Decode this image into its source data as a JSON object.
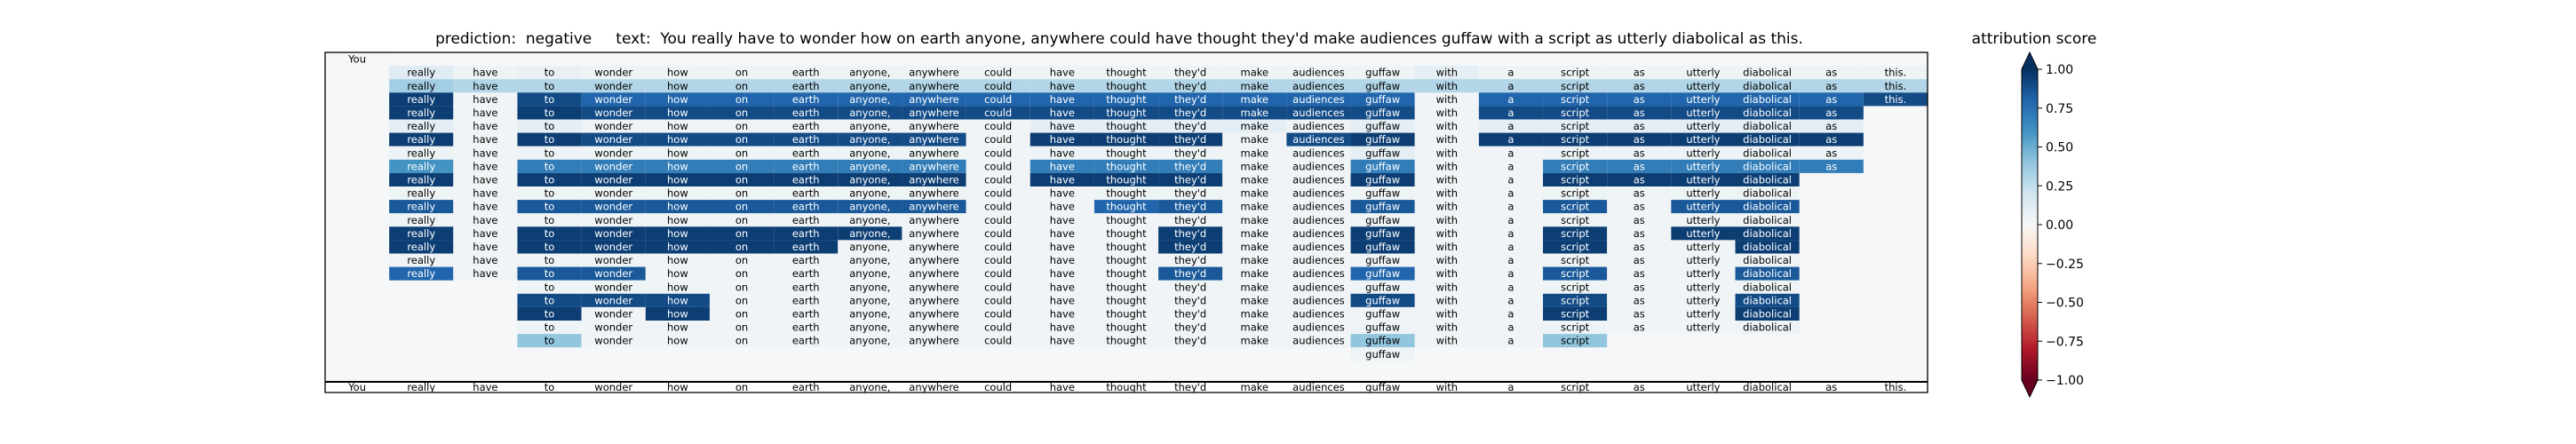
{
  "chart_data": {
    "type": "heatmap",
    "title": {
      "prediction_label": "prediction:",
      "prediction_value": "negative",
      "text_label": "text:",
      "text_value": "You really have to wonder how on earth anyone, anywhere could have thought they'd make audiences guffaw with a script as utterly diabolical as this."
    },
    "tokens": [
      "You",
      "really",
      "have",
      "to",
      "wonder",
      "how",
      "on",
      "earth",
      "anyone,",
      "anywhere",
      "could",
      "have",
      "thought",
      "they'd",
      "make",
      "audiences",
      "guffaw",
      "with",
      "a",
      "script",
      "as",
      "utterly",
      "diabolical",
      "as",
      "this."
    ],
    "rows": [
      {
        "start": 0,
        "values": [
          0.01
        ]
      },
      {
        "start": 1,
        "values": [
          0.12,
          0.05,
          0.08,
          0.05,
          0.05,
          0.05,
          0.05,
          0.05,
          0.05,
          0.05,
          0.05,
          0.05,
          0.05,
          0.05,
          0.05,
          0.05,
          0.1,
          0.05,
          0.05,
          0.05,
          0.05,
          0.05,
          0.05,
          0.05
        ]
      },
      {
        "start": 1,
        "values": [
          0.35,
          0.3,
          0.3,
          0.3,
          0.3,
          0.3,
          0.3,
          0.3,
          0.3,
          0.3,
          0.3,
          0.3,
          0.3,
          0.3,
          0.3,
          0.3,
          0.3,
          0.3,
          0.3,
          0.3,
          0.3,
          0.3,
          0.3,
          0.3
        ]
      },
      {
        "start": 1,
        "values": [
          0.95,
          0.03,
          0.9,
          0.8,
          0.8,
          0.8,
          0.8,
          0.8,
          0.8,
          0.8,
          0.8,
          0.8,
          0.8,
          0.8,
          0.8,
          0.8,
          0.03,
          0.8,
          0.8,
          0.8,
          0.8,
          0.8,
          0.8,
          0.9
        ]
      },
      {
        "start": 1,
        "values": [
          0.95,
          0.03,
          0.95,
          0.9,
          0.9,
          0.9,
          0.9,
          0.9,
          0.9,
          0.9,
          0.9,
          0.9,
          0.9,
          0.9,
          0.9,
          0.9,
          0.03,
          0.9,
          0.9,
          0.9,
          0.9,
          0.9,
          0.9
        ]
      },
      {
        "start": 1,
        "values": [
          0.1,
          0.03,
          0.1,
          0.05,
          0.05,
          0.05,
          0.05,
          0.05,
          0.05,
          0.03,
          0.1,
          0.1,
          0.1,
          0.1,
          0.05,
          0.1,
          0.03,
          0.1,
          0.1,
          0.1,
          0.1,
          0.1,
          0.1
        ]
      },
      {
        "start": 1,
        "values": [
          0.95,
          0.03,
          0.95,
          0.9,
          0.9,
          0.9,
          0.9,
          0.9,
          0.9,
          0.03,
          0.95,
          0.95,
          0.95,
          0.03,
          0.9,
          0.95,
          0.03,
          0.95,
          0.95,
          0.95,
          0.95,
          0.95,
          0.95
        ]
      },
      {
        "start": 1,
        "values": [
          0.05,
          0.03,
          0.05,
          0.05,
          0.05,
          0.05,
          0.05,
          0.05,
          0.05,
          0.03,
          0.05,
          0.05,
          0.05,
          0.03,
          0.05,
          0.1,
          0.03,
          0.03,
          0.05,
          0.05,
          0.05,
          0.05,
          0.05
        ]
      },
      {
        "start": 1,
        "values": [
          0.6,
          0.03,
          0.7,
          0.7,
          0.7,
          0.7,
          0.7,
          0.7,
          0.7,
          0.03,
          0.7,
          0.7,
          0.7,
          0.03,
          0.03,
          0.7,
          0.03,
          0.03,
          0.7,
          0.7,
          0.7,
          0.7,
          0.7
        ]
      },
      {
        "start": 1,
        "values": [
          0.95,
          0.03,
          0.95,
          0.95,
          0.95,
          0.95,
          0.95,
          0.95,
          0.95,
          0.03,
          0.95,
          0.95,
          0.95,
          0.03,
          0.03,
          0.95,
          0.03,
          0.03,
          0.95,
          0.95,
          0.95,
          0.95
        ]
      },
      {
        "start": 1,
        "values": [
          0.05,
          0.03,
          0.05,
          0.05,
          0.05,
          0.05,
          0.05,
          0.05,
          0.05,
          0.03,
          0.03,
          0.05,
          0.05,
          0.03,
          0.03,
          0.05,
          0.03,
          0.03,
          0.05,
          0.05,
          0.05,
          0.05
        ]
      },
      {
        "start": 1,
        "values": [
          0.85,
          0.03,
          0.85,
          0.85,
          0.85,
          0.85,
          0.85,
          0.85,
          0.85,
          0.03,
          0.03,
          0.8,
          0.85,
          0.03,
          0.03,
          0.85,
          0.03,
          0.03,
          0.85,
          0.03,
          0.85,
          0.85
        ]
      },
      {
        "start": 1,
        "values": [
          0.05,
          0.03,
          0.05,
          0.05,
          0.05,
          0.05,
          0.05,
          0.05,
          0.05,
          0.03,
          0.03,
          0.03,
          0.05,
          0.03,
          0.03,
          0.05,
          0.03,
          0.03,
          0.05,
          0.03,
          0.05,
          0.05
        ]
      },
      {
        "start": 1,
        "values": [
          0.95,
          0.03,
          0.95,
          0.95,
          0.95,
          0.95,
          0.95,
          0.95,
          0.03,
          0.03,
          0.03,
          0.03,
          0.95,
          0.03,
          0.03,
          0.95,
          0.03,
          0.03,
          0.95,
          0.03,
          0.95,
          0.95
        ]
      },
      {
        "start": 1,
        "values": [
          0.95,
          0.03,
          0.95,
          0.95,
          0.95,
          0.95,
          0.95,
          0.03,
          0.03,
          0.03,
          0.03,
          0.03,
          0.95,
          0.03,
          0.03,
          0.95,
          0.03,
          0.03,
          0.95,
          0.03,
          0.03,
          0.95
        ]
      },
      {
        "start": 1,
        "values": [
          0.05,
          0.03,
          0.05,
          0.05,
          0.05,
          0.05,
          0.05,
          0.03,
          0.03,
          0.03,
          0.03,
          0.03,
          0.05,
          0.03,
          0.03,
          0.05,
          0.03,
          0.03,
          0.05,
          0.03,
          0.03,
          0.05
        ]
      },
      {
        "start": 1,
        "values": [
          0.8,
          0.03,
          0.85,
          0.85,
          0.03,
          0.03,
          0.03,
          0.03,
          0.03,
          0.03,
          0.03,
          0.03,
          0.85,
          0.03,
          0.03,
          0.8,
          0.03,
          0.03,
          0.85,
          0.03,
          0.03,
          0.85
        ]
      },
      {
        "start": 3,
        "values": [
          0.05,
          0.05,
          0.05,
          0.03,
          0.03,
          0.03,
          0.03,
          0.03,
          0.03,
          0.03,
          0.05,
          0.03,
          0.03,
          0.05,
          0.03,
          0.03,
          0.05,
          0.03,
          0.03,
          0.05
        ]
      },
      {
        "start": 3,
        "values": [
          0.9,
          0.9,
          0.9,
          0.03,
          0.03,
          0.03,
          0.03,
          0.03,
          0.03,
          0.03,
          0.03,
          0.03,
          0.03,
          0.9,
          0.03,
          0.03,
          0.9,
          0.03,
          0.03,
          0.9
        ]
      },
      {
        "start": 3,
        "values": [
          0.95,
          0.03,
          0.95,
          0.03,
          0.03,
          0.03,
          0.03,
          0.03,
          0.03,
          0.03,
          0.03,
          0.03,
          0.03,
          0.03,
          0.03,
          0.03,
          0.95,
          0.03,
          0.03,
          0.95
        ]
      },
      {
        "start": 3,
        "values": [
          0.05,
          0.03,
          0.03,
          0.03,
          0.03,
          0.03,
          0.03,
          0.03,
          0.03,
          0.03,
          0.03,
          0.03,
          0.03,
          0.05,
          0.03,
          0.03,
          0.05,
          0.03,
          0.03,
          0.05
        ]
      },
      {
        "start": 3,
        "values": [
          0.4,
          0.03,
          0.03,
          0.03,
          0.03,
          0.03,
          0.03,
          0.03,
          0.03,
          0.03,
          0.03,
          0.03,
          0.03,
          0.4,
          0.03,
          0.03,
          0.4
        ]
      },
      {
        "start": 16,
        "values": [
          0.05
        ]
      }
    ],
    "bottom_labels": [
      "You",
      "really",
      "have",
      "to",
      "wonder",
      "how",
      "on",
      "earth",
      "anyone,",
      "anywhere",
      "could",
      "have",
      "thought",
      "they'd",
      "make",
      "audiences",
      "guffaw",
      "with",
      "a",
      "script",
      "as",
      "utterly",
      "diabolical",
      "as",
      "this."
    ],
    "colorbar": {
      "label": "attribution score",
      "vmin": -1.0,
      "vmax": 1.0,
      "ticks": [
        "1.00",
        "0.75",
        "0.50",
        "0.25",
        "0.00",
        "−0.25",
        "−0.50",
        "−0.75",
        "−1.00"
      ],
      "colormap": "RdBu",
      "extend": "both"
    }
  }
}
